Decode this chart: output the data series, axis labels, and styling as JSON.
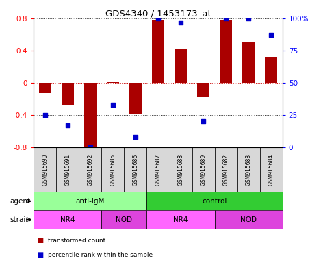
{
  "title": "GDS4340 / 1453173_at",
  "samples": [
    "GSM915690",
    "GSM915691",
    "GSM915692",
    "GSM915685",
    "GSM915686",
    "GSM915687",
    "GSM915688",
    "GSM915689",
    "GSM915682",
    "GSM915683",
    "GSM915684"
  ],
  "bar_values": [
    -0.13,
    -0.27,
    -0.82,
    0.02,
    -0.38,
    0.78,
    0.42,
    -0.18,
    0.78,
    0.5,
    0.32
  ],
  "percentile_values": [
    25,
    17,
    0,
    33,
    8,
    100,
    97,
    20,
    100,
    100,
    87
  ],
  "ylim": [
    -0.8,
    0.8
  ],
  "yticks_left": [
    -0.8,
    -0.4,
    0.0,
    0.4,
    0.8
  ],
  "yticks_right": [
    0,
    25,
    50,
    75,
    100
  ],
  "bar_color": "#aa0000",
  "dot_color": "#0000cc",
  "agent_groups": [
    {
      "label": "anti-IgM",
      "start": 0,
      "end": 5,
      "color": "#99ff99"
    },
    {
      "label": "control",
      "start": 5,
      "end": 11,
      "color": "#33cc33"
    }
  ],
  "strain_groups": [
    {
      "label": "NR4",
      "start": 0,
      "end": 3,
      "color": "#ff66ff"
    },
    {
      "label": "NOD",
      "start": 3,
      "end": 5,
      "color": "#dd44dd"
    },
    {
      "label": "NR4",
      "start": 5,
      "end": 8,
      "color": "#ff66ff"
    },
    {
      "label": "NOD",
      "start": 8,
      "end": 11,
      "color": "#dd44dd"
    }
  ],
  "legend_items": [
    {
      "label": "transformed count",
      "color": "#aa0000"
    },
    {
      "label": "percentile rank within the sample",
      "color": "#0000cc"
    }
  ]
}
